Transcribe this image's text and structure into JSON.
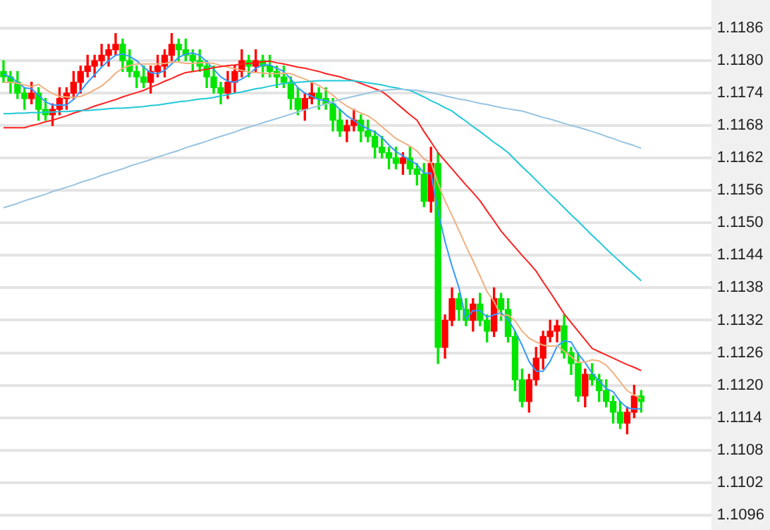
{
  "chart_data": {
    "type": "candlestick",
    "categories": [
      null,
      null,
      null,
      null,
      null,
      null,
      null,
      null,
      null,
      null,
      null,
      null,
      null,
      null,
      null,
      null,
      null,
      null,
      null,
      null,
      null,
      null,
      null,
      null,
      null,
      null,
      null,
      null,
      null,
      null,
      null,
      null,
      null,
      null,
      null,
      null,
      null,
      null,
      null,
      null,
      null,
      null,
      null,
      null,
      null,
      null,
      null,
      null,
      null,
      null,
      null,
      null,
      null,
      null,
      null,
      null,
      null,
      null,
      null,
      null,
      null,
      null,
      null,
      null,
      null,
      null,
      null,
      null,
      null,
      null,
      null,
      null,
      null,
      null,
      null,
      null,
      null,
      null,
      null,
      null,
      null,
      null,
      null,
      null,
      null,
      null,
      null,
      null,
      null,
      null,
      null,
      null
    ],
    "ohlc": [
      [
        1.1178,
        1.118,
        1.1176,
        1.1177
      ],
      [
        1.1177,
        1.1178,
        1.1174,
        1.1176
      ],
      [
        1.1176,
        1.1178,
        1.1173,
        1.1174
      ],
      [
        1.1174,
        1.1175,
        1.1171,
        1.1173
      ],
      [
        1.1173,
        1.1176,
        1.1172,
        1.1174
      ],
      [
        1.1174,
        1.1175,
        1.1169,
        1.1171
      ],
      [
        1.1171,
        1.1173,
        1.1169,
        1.117
      ],
      [
        1.117,
        1.1172,
        1.1168,
        1.1171
      ],
      [
        1.1171,
        1.1175,
        1.117,
        1.1173
      ],
      [
        1.1173,
        1.1175,
        1.1171,
        1.1174
      ],
      [
        1.1174,
        1.1178,
        1.1173,
        1.1176
      ],
      [
        1.1176,
        1.1179,
        1.1174,
        1.1178
      ],
      [
        1.1178,
        1.1181,
        1.1177,
        1.1179
      ],
      [
        1.1179,
        1.1181,
        1.1177,
        1.118
      ],
      [
        1.118,
        1.1183,
        1.1179,
        1.1181
      ],
      [
        1.1181,
        1.1183,
        1.1179,
        1.1182
      ],
      [
        1.1182,
        1.1185,
        1.1181,
        1.1183
      ],
      [
        1.1183,
        1.1184,
        1.1178,
        1.118
      ],
      [
        1.118,
        1.1182,
        1.1177,
        1.1178
      ],
      [
        1.1178,
        1.1179,
        1.1175,
        1.1177
      ],
      [
        1.1177,
        1.1179,
        1.1175,
        1.1176
      ],
      [
        1.1176,
        1.1179,
        1.1174,
        1.1178
      ],
      [
        1.1178,
        1.1181,
        1.1177,
        1.1179
      ],
      [
        1.1179,
        1.1182,
        1.1177,
        1.1181
      ],
      [
        1.1181,
        1.1185,
        1.118,
        1.1183
      ],
      [
        1.1183,
        1.1184,
        1.118,
        1.1182
      ],
      [
        1.1182,
        1.1184,
        1.118,
        1.1181
      ],
      [
        1.1181,
        1.1182,
        1.1178,
        1.118
      ],
      [
        1.118,
        1.1182,
        1.1178,
        1.1179
      ],
      [
        1.1179,
        1.118,
        1.1175,
        1.1177
      ],
      [
        1.1177,
        1.1179,
        1.1174,
        1.1175
      ],
      [
        1.1175,
        1.1176,
        1.1172,
        1.1174
      ],
      [
        1.1174,
        1.1178,
        1.1173,
        1.1176
      ],
      [
        1.1176,
        1.1179,
        1.1174,
        1.1178
      ],
      [
        1.1178,
        1.1182,
        1.1177,
        1.118
      ],
      [
        1.118,
        1.1181,
        1.1177,
        1.1179
      ],
      [
        1.1179,
        1.1182,
        1.1178,
        1.118
      ],
      [
        1.118,
        1.1181,
        1.1177,
        1.1179
      ],
      [
        1.1179,
        1.1181,
        1.1177,
        1.1178
      ],
      [
        1.1178,
        1.1179,
        1.1175,
        1.1177
      ],
      [
        1.1177,
        1.1179,
        1.1175,
        1.1176
      ],
      [
        1.1176,
        1.1177,
        1.1171,
        1.1173
      ],
      [
        1.1173,
        1.1175,
        1.117,
        1.1171
      ],
      [
        1.1171,
        1.1174,
        1.1169,
        1.1173
      ],
      [
        1.1173,
        1.1176,
        1.1172,
        1.1174
      ],
      [
        1.1174,
        1.1175,
        1.1171,
        1.1173
      ],
      [
        1.1173,
        1.1175,
        1.1171,
        1.1172
      ],
      [
        1.1172,
        1.1173,
        1.1167,
        1.1169
      ],
      [
        1.1169,
        1.1171,
        1.1166,
        1.1167
      ],
      [
        1.1167,
        1.1169,
        1.1165,
        1.1168
      ],
      [
        1.1168,
        1.1171,
        1.1167,
        1.1169
      ],
      [
        1.1169,
        1.117,
        1.1165,
        1.1167
      ],
      [
        1.1167,
        1.1169,
        1.1165,
        1.1166
      ],
      [
        1.1166,
        1.1167,
        1.1162,
        1.1164
      ],
      [
        1.1164,
        1.1166,
        1.1162,
        1.1163
      ],
      [
        1.1163,
        1.1164,
        1.116,
        1.1162
      ],
      [
        1.1162,
        1.1164,
        1.116,
        1.1161
      ],
      [
        1.1161,
        1.1163,
        1.1159,
        1.1162
      ],
      [
        1.1162,
        1.1164,
        1.1159,
        1.116
      ],
      [
        1.116,
        1.1161,
        1.1157,
        1.1159
      ],
      [
        1.1159,
        1.1161,
        1.1153,
        1.1154
      ],
      [
        1.1154,
        1.1164,
        1.1152,
        1.1161
      ],
      [
        1.1161,
        1.1163,
        1.1124,
        1.1127
      ],
      [
        1.1127,
        1.1133,
        1.1125,
        1.1132
      ],
      [
        1.1132,
        1.1138,
        1.1131,
        1.1136
      ],
      [
        1.1136,
        1.1137,
        1.1132,
        1.1134
      ],
      [
        1.1134,
        1.1136,
        1.1131,
        1.1132
      ],
      [
        1.1132,
        1.1136,
        1.113,
        1.1135
      ],
      [
        1.1135,
        1.1137,
        1.1131,
        1.1132
      ],
      [
        1.1132,
        1.1133,
        1.1128,
        1.113
      ],
      [
        1.113,
        1.1138,
        1.1129,
        1.1136
      ],
      [
        1.1136,
        1.1137,
        1.1132,
        1.1134
      ],
      [
        1.1134,
        1.1136,
        1.1128,
        1.1129
      ],
      [
        1.1129,
        1.113,
        1.1119,
        1.1121
      ],
      [
        1.1121,
        1.1123,
        1.1116,
        1.1117
      ],
      [
        1.1117,
        1.1122,
        1.1115,
        1.1121
      ],
      [
        1.1121,
        1.1127,
        1.112,
        1.1125
      ],
      [
        1.1125,
        1.113,
        1.1123,
        1.1129
      ],
      [
        1.1129,
        1.1132,
        1.1128,
        1.113
      ],
      [
        1.113,
        1.1132,
        1.1128,
        1.1131
      ],
      [
        1.1131,
        1.1133,
        1.1125,
        1.1126
      ],
      [
        1.1126,
        1.1127,
        1.1122,
        1.1124
      ],
      [
        1.1124,
        1.1126,
        1.1117,
        1.1118
      ],
      [
        1.1118,
        1.1123,
        1.1116,
        1.1122
      ],
      [
        1.1122,
        1.1124,
        1.112,
        1.1121
      ],
      [
        1.1121,
        1.1122,
        1.1117,
        1.1119
      ],
      [
        1.1119,
        1.1121,
        1.1116,
        1.1117
      ],
      [
        1.1117,
        1.1118,
        1.1113,
        1.1115
      ],
      [
        1.1115,
        1.1117,
        1.1112,
        1.1113
      ],
      [
        1.1113,
        1.1116,
        1.1111,
        1.1115
      ],
      [
        1.1115,
        1.112,
        1.1114,
        1.1118
      ],
      [
        1.1118,
        1.1119,
        1.1115,
        1.1117
      ]
    ],
    "colors": [
      "#00e600",
      "#00e600",
      "#00e600",
      "#00e600",
      "#ff0000",
      "#00e600",
      "#00e600",
      "#ff0000",
      "#ff0000",
      "#ff0000",
      "#ff0000",
      "#ff0000",
      "#ff0000",
      "#ff0000",
      "#ff0000",
      "#ff0000",
      "#ff0000",
      "#00e600",
      "#00e600",
      "#00e600",
      "#00e600",
      "#ff0000",
      "#ff0000",
      "#ff0000",
      "#ff0000",
      "#00e600",
      "#00e600",
      "#00e600",
      "#00e600",
      "#00e600",
      "#00e600",
      "#00e600",
      "#ff0000",
      "#ff0000",
      "#ff0000",
      "#00e600",
      "#ff0000",
      "#00e600",
      "#00e600",
      "#00e600",
      "#00e600",
      "#00e600",
      "#00e600",
      "#ff0000",
      "#ff0000",
      "#00e600",
      "#00e600",
      "#00e600",
      "#00e600",
      "#ff0000",
      "#ff0000",
      "#00e600",
      "#00e600",
      "#00e600",
      "#00e600",
      "#00e600",
      "#00e600",
      "#ff0000",
      "#00e600",
      "#00e600",
      "#00e600",
      "#ff0000",
      "#00e600",
      "#ff0000",
      "#ff0000",
      "#00e600",
      "#00e600",
      "#ff0000",
      "#00e600",
      "#00e600",
      "#ff0000",
      "#00e600",
      "#00e600",
      "#00e600",
      "#00e600",
      "#ff0000",
      "#ff0000",
      "#ff0000",
      "#ff0000",
      "#ff0000",
      "#00e600",
      "#00e600",
      "#00e600",
      "#ff0000",
      "#00e600",
      "#00e600",
      "#00e600",
      "#00e600",
      "#00e600",
      "#ff0000",
      "#ff0000",
      "#00e600"
    ],
    "series": [
      {
        "type": "line",
        "color": "#99c4e0",
        "values": [
          1.11528,
          1.11532,
          1.11536,
          1.11541,
          1.11545,
          1.11549,
          1.11553,
          1.11558,
          1.11562,
          1.11566,
          1.1157,
          1.11575,
          1.11579,
          1.11583,
          1.11588,
          1.11592,
          1.11596,
          1.116,
          1.11605,
          1.11609,
          1.11613,
          1.11617,
          1.11622,
          1.11626,
          1.1163,
          1.11634,
          1.11639,
          1.11643,
          1.11647,
          1.11651,
          1.11656,
          1.1166,
          1.11664,
          1.11668,
          1.11673,
          1.11677,
          1.11681,
          1.11685,
          1.11689,
          1.11693,
          1.11697,
          1.11701,
          1.11705,
          1.11709,
          1.11713,
          1.11716,
          1.1172,
          1.11724,
          1.11728,
          1.11731,
          1.11734,
          1.11737,
          1.1174,
          1.11743,
          1.11745,
          1.11746,
          1.11747,
          1.11747,
          1.11746,
          1.11745,
          1.11743,
          1.11741,
          1.11738,
          1.11735,
          1.11732,
          1.11729,
          1.11727,
          1.11724,
          1.11721,
          1.11719,
          1.11716,
          1.11713,
          1.11711,
          1.11709,
          1.11707,
          1.11703,
          1.11699,
          1.11695,
          1.11692,
          1.11688,
          1.11684,
          1.1168,
          1.11677,
          1.11673,
          1.11669,
          1.11665,
          1.1166,
          1.11656,
          1.11651,
          1.11647,
          1.11643,
          1.11638
        ]
      },
      {
        "type": "line",
        "color": "#22c8d8",
        "values": [
          1.11702,
          1.11702,
          1.11703,
          1.11703,
          1.11704,
          1.11704,
          1.11705,
          1.11705,
          1.11706,
          1.11706,
          1.11707,
          1.11708,
          1.11708,
          1.11709,
          1.1171,
          1.11711,
          1.11712,
          1.11712,
          1.11713,
          1.11714,
          1.11715,
          1.11717,
          1.11718,
          1.1172,
          1.11722,
          1.11724,
          1.11725,
          1.11727,
          1.11729,
          1.1173,
          1.11732,
          1.11735,
          1.11737,
          1.1174,
          1.11742,
          1.11745,
          1.11748,
          1.1175,
          1.11753,
          1.11755,
          1.11758,
          1.11759,
          1.1176,
          1.11761,
          1.11762,
          1.11763,
          1.11763,
          1.11763,
          1.11763,
          1.11763,
          1.11763,
          1.11761,
          1.11759,
          1.11757,
          1.11755,
          1.11752,
          1.1175,
          1.11747,
          1.11745,
          1.11739,
          1.11733,
          1.11726,
          1.1172,
          1.11713,
          1.11707,
          1.11697,
          1.11688,
          1.11678,
          1.11669,
          1.11659,
          1.11649,
          1.1164,
          1.1163,
          1.11617,
          1.11604,
          1.11592,
          1.11579,
          1.11566,
          1.11553,
          1.11541,
          1.11528,
          1.11515,
          1.11503,
          1.1149,
          1.11477,
          1.11465,
          1.11452,
          1.1144,
          1.11428,
          1.11416,
          1.11405,
          1.11393
        ]
      },
      {
        "type": "line",
        "color": "#ff2020",
        "values": [
          1.11676,
          1.11676,
          1.11676,
          1.11676,
          1.1168,
          1.11683,
          1.11687,
          1.1169,
          1.11694,
          1.11698,
          1.11703,
          1.11707,
          1.11711,
          1.11716,
          1.1172,
          1.11724,
          1.11728,
          1.11733,
          1.11737,
          1.11741,
          1.11745,
          1.11751,
          1.11756,
          1.11762,
          1.11767,
          1.11773,
          1.11778,
          1.1178,
          1.11782,
          1.11784,
          1.11787,
          1.11789,
          1.11791,
          1.11792,
          1.11794,
          1.11795,
          1.11796,
          1.11798,
          1.11799,
          1.11796,
          1.11794,
          1.11791,
          1.11788,
          1.11786,
          1.11783,
          1.1178,
          1.11776,
          1.11773,
          1.1177,
          1.11766,
          1.11763,
          1.11758,
          1.11753,
          1.11748,
          1.11743,
          1.11733,
          1.11722,
          1.11711,
          1.117,
          1.1169,
          1.11669,
          1.1165,
          1.1163,
          1.11615,
          1.116,
          1.11585,
          1.1157,
          1.11556,
          1.11541,
          1.11522,
          1.11504,
          1.11485,
          1.1147,
          1.11455,
          1.1144,
          1.11426,
          1.11411,
          1.11391,
          1.11372,
          1.11352,
          1.11332,
          1.11316,
          1.113,
          1.11284,
          1.11268,
          1.11262,
          1.11256,
          1.1125,
          1.11244,
          1.11238,
          1.11233,
          1.11227
        ]
      },
      {
        "type": "line",
        "color": "#f0b080",
        "values": [
          1.1176,
          1.1176,
          1.11758,
          1.11755,
          1.11752,
          1.11756,
          1.11747,
          1.11739,
          1.11734,
          1.11733,
          1.11732,
          1.11734,
          1.11739,
          1.11746,
          1.11753,
          1.11764,
          1.11777,
          1.11786,
          1.11791,
          1.11794,
          1.11794,
          1.11794,
          1.11794,
          1.11795,
          1.11797,
          1.11797,
          1.11795,
          1.11795,
          1.11796,
          1.11796,
          1.11795,
          1.11791,
          1.11788,
          1.11785,
          1.11782,
          1.11779,
          1.11778,
          1.11777,
          1.11776,
          1.11776,
          1.11777,
          1.11776,
          1.11771,
          1.11766,
          1.1176,
          1.11754,
          1.11746,
          1.11736,
          1.11725,
          1.11716,
          1.11709,
          1.11703,
          1.11698,
          1.11689,
          1.11678,
          1.11667,
          1.11656,
          1.11649,
          1.11642,
          1.11633,
          1.11618,
          1.11612,
          1.11573,
          1.11541,
          1.11514,
          1.11486,
          1.11457,
          1.1143,
          1.11402,
          1.11373,
          1.11355,
          1.11328,
          1.1133,
          1.11319,
          1.113,
          1.11287,
          1.1128,
          1.11274,
          1.11272,
          1.11273,
          1.11263,
          1.11253,
          1.11242,
          1.11243,
          1.11247,
          1.11245,
          1.11237,
          1.11223,
          1.11206,
          1.1119,
          1.11182,
          1.11175
        ]
      },
      {
        "type": "line",
        "color": "#3399ff",
        "values": [
          1.11775,
          1.1177,
          1.1176,
          1.1175,
          1.11748,
          1.11736,
          1.11724,
          1.11718,
          1.11718,
          1.11718,
          1.11728,
          1.11744,
          1.1176,
          1.11774,
          1.11788,
          1.118,
          1.1181,
          1.11812,
          1.11808,
          1.118,
          1.11788,
          1.11778,
          1.11776,
          1.11782,
          1.11794,
          1.11806,
          1.11812,
          1.11814,
          1.1181,
          1.11798,
          1.11784,
          1.1177,
          1.11762,
          1.1176,
          1.11766,
          1.11774,
          1.11786,
          1.11792,
          1.11792,
          1.11786,
          1.1178,
          1.11766,
          1.1175,
          1.1174,
          1.11734,
          1.11728,
          1.11726,
          1.11722,
          1.1171,
          1.11698,
          1.1169,
          1.1168,
          1.11674,
          1.11668,
          1.11658,
          1.11644,
          1.11632,
          1.11624,
          1.11616,
          1.11608,
          1.11592,
          1.11592,
          1.11522,
          1.11466,
          1.1142,
          1.1138,
          1.11322,
          1.11338,
          1.11338,
          1.11326,
          1.1133,
          1.11334,
          1.11322,
          1.113,
          1.11274,
          1.11244,
          1.11226,
          1.11226,
          1.11244,
          1.11272,
          1.11282,
          1.1128,
          1.11258,
          1.11242,
          1.11222,
          1.11208,
          1.11194,
          1.11188,
          1.1117,
          1.11158,
          1.11156,
          1.11156
        ]
      }
    ],
    "ylim": [
      1.1096,
      1.1186
    ],
    "yticks": [
      1.1096,
      1.1102,
      1.1108,
      1.1114,
      {
        "value": 1.112,
        "label": "1.1120"
      },
      1.1126,
      1.1132,
      1.1138,
      1.1144,
      {
        "value": 1.115,
        "label": "1.1150"
      },
      1.1156,
      1.1162,
      1.1168,
      1.1174,
      {
        "value": 1.118,
        "label": "1.1180"
      },
      1.1186
    ],
    "grid": "y",
    "tick_labels": "y",
    "legend": false,
    "marker": "none",
    "line_style": "solid"
  }
}
